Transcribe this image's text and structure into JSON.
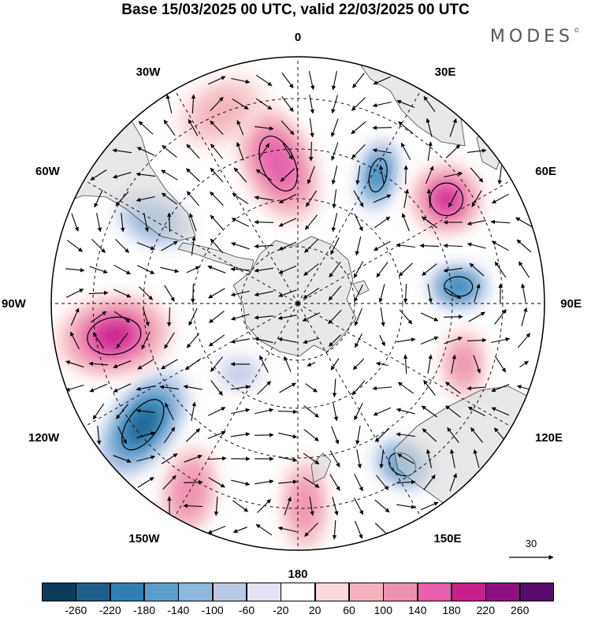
{
  "title": "Base 15/03/2025 00 UTC, valid 22/03/2025 00 UTC",
  "brand": "MODES",
  "brand_mark": "©",
  "longitude_labels": {
    "lon_0": "0",
    "lon_30e": "30E",
    "lon_60e": "60E",
    "lon_90e": "90E",
    "lon_120e": "120E",
    "lon_150e": "150E",
    "lon_180": "180",
    "lon_150w": "150W",
    "lon_120w": "120W",
    "lon_90w": "90W",
    "lon_60w": "60W",
    "lon_30w": "30W"
  },
  "wind_reference": {
    "label": "30"
  },
  "colorbar": {
    "colors": [
      "#0f3b5a",
      "#1f5f8a",
      "#2f7fb4",
      "#5a9fcc",
      "#8fb6db",
      "#b9c8e4",
      "#e2e3f2",
      "#ffffff",
      "#f9d9da",
      "#f4b3bd",
      "#ef8fb1",
      "#e660ac",
      "#c61f8c",
      "#8e0f7e",
      "#5b0b6e"
    ],
    "tick_labels": [
      "-260",
      "-220",
      "-180",
      "-140",
      "-100",
      "-60",
      "-20",
      "20",
      "60",
      "100",
      "140",
      "180",
      "220",
      "260"
    ]
  },
  "anomalies": [
    {
      "lon": -8,
      "lat": -62,
      "value": 170,
      "rx": 46,
      "ry": 82,
      "rot": -24
    },
    {
      "lon": 32,
      "lat": -60,
      "value": -200,
      "rx": 24,
      "ry": 48,
      "rot": 12
    },
    {
      "lon": 55,
      "lat": -54,
      "value": 180,
      "rx": 46,
      "ry": 46,
      "rot": 0
    },
    {
      "lon": 84,
      "lat": -58,
      "value": -210,
      "rx": 40,
      "ry": 28,
      "rot": 0
    },
    {
      "lon": 110,
      "lat": -55,
      "value": 110,
      "rx": 28,
      "ry": 46,
      "rot": 0
    },
    {
      "lon": 147,
      "lat": -52,
      "value": -170,
      "rx": 40,
      "ry": 30,
      "rot": 30
    },
    {
      "lon": 178,
      "lat": -50,
      "value": 110,
      "rx": 30,
      "ry": 62,
      "rot": 0
    },
    {
      "lon": -150,
      "lat": -47,
      "value": 130,
      "rx": 34,
      "ry": 60,
      "rot": 10
    },
    {
      "lon": -128,
      "lat": -51,
      "value": -240,
      "rx": 42,
      "ry": 82,
      "rot": 36
    },
    {
      "lon": -100,
      "lat": -53,
      "value": 190,
      "rx": 52,
      "ry": 76,
      "rot": 80
    },
    {
      "lon": -60,
      "lat": -57,
      "value": -130,
      "rx": 52,
      "ry": 32,
      "rot": 22
    },
    {
      "lon": -22,
      "lat": -49,
      "value": 60,
      "rx": 60,
      "ry": 40,
      "rot": -30
    },
    {
      "lon": 75,
      "lat": -30,
      "value": 60,
      "rx": 50,
      "ry": 30,
      "rot": 0
    },
    {
      "lon": -140,
      "lat": -72,
      "value": -60,
      "rx": 30,
      "ry": 22,
      "rot": 0
    }
  ]
}
